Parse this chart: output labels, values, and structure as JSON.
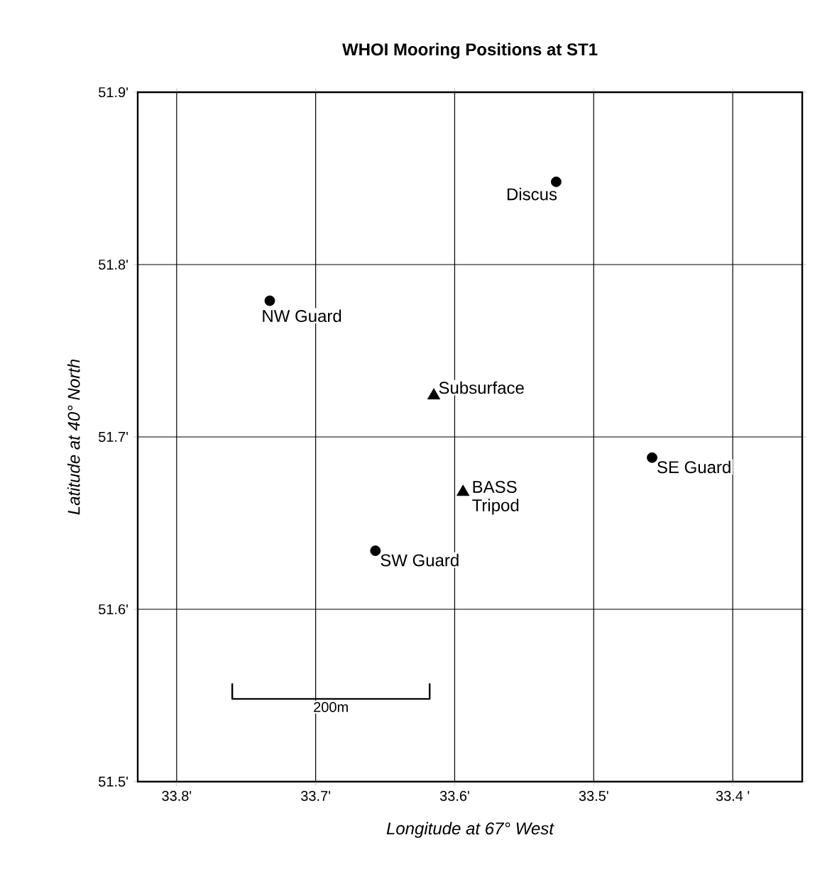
{
  "chart_data": {
    "type": "scatter",
    "title": "WHOI Mooring Positions at ST1",
    "xlabel": "Longitude at 67° West",
    "ylabel": "Latitude at 40° North",
    "xlim": [
      33.828,
      33.35
    ],
    "ylim": [
      51.5,
      51.9
    ],
    "xticks": [
      {
        "value": 33.8,
        "label": "33.8'"
      },
      {
        "value": 33.7,
        "label": "33.7'"
      },
      {
        "value": 33.6,
        "label": "33.6'"
      },
      {
        "value": 33.5,
        "label": "33.5'"
      },
      {
        "value": 33.4,
        "label": "33.4 '"
      }
    ],
    "yticks": [
      {
        "value": 51.5,
        "label": "51.5'"
      },
      {
        "value": 51.6,
        "label": "51.6'"
      },
      {
        "value": 51.7,
        "label": "51.7'"
      },
      {
        "value": 51.8,
        "label": "51.8'"
      },
      {
        "value": 51.9,
        "label": "51.9'"
      }
    ],
    "grid": true,
    "series": [
      {
        "marker": "circle",
        "color": "#000000",
        "x": [
          33.527,
          33.733,
          33.458,
          33.657
        ],
        "values": [
          51.848,
          51.779,
          51.688,
          51.634
        ]
      },
      {
        "marker": "triangle",
        "color": "#000000",
        "x": [
          33.615,
          33.594
        ],
        "values": [
          51.724,
          51.668
        ]
      },
      {
        "type": "line",
        "marker": "none",
        "color": "#000000",
        "x": [
          33.76,
          33.76,
          33.618,
          33.618
        ],
        "values": [
          51.557,
          51.548,
          51.548,
          51.557
        ]
      }
    ],
    "annotations": [
      {
        "text": "Discus",
        "x": 33.527,
        "y": 51.848
      },
      {
        "text": "NW Guard",
        "x": 33.733,
        "y": 51.779
      },
      {
        "text": "Subsurface",
        "x": 33.615,
        "y": 51.724
      },
      {
        "text": "BASS Tripod",
        "x": 33.594,
        "y": 51.668
      },
      {
        "text": "SE Guard",
        "x": 33.458,
        "y": 51.688
      },
      {
        "text": "SW Guard",
        "x": 33.657,
        "y": 51.634
      },
      {
        "text": "200m",
        "x": 33.689,
        "y": 51.548
      }
    ]
  }
}
